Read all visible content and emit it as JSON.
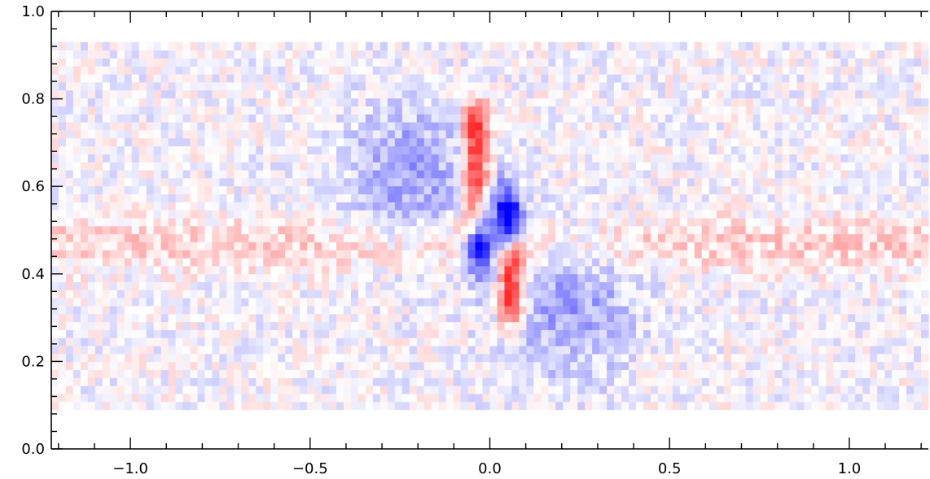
{
  "chart_data": {
    "type": "heatmap",
    "title": "",
    "xlabel": "",
    "ylabel": "",
    "xlim": [
      -1.22,
      1.22
    ],
    "ylim": [
      0.0,
      1.0
    ],
    "x_ticks": [
      -1.0,
      -0.5,
      0.0,
      0.5,
      1.0
    ],
    "x_tick_labels": [
      "−1.0",
      "−0.5",
      "0.0",
      "0.5",
      "1.0"
    ],
    "y_ticks": [
      0.0,
      0.2,
      0.4,
      0.6,
      0.8,
      1.0
    ],
    "y_tick_labels": [
      "0.0",
      "0.2",
      "0.4",
      "0.6",
      "0.8",
      "1.0"
    ],
    "data_extent": {
      "x": [
        -1.22,
        1.22
      ],
      "y": [
        0.09,
        0.93
      ]
    },
    "grid": false,
    "colormap": {
      "negative": "#0000ff",
      "zero": "#ffffff",
      "positive": "#ff0000"
    },
    "value_range": [
      -1,
      1
    ],
    "features": [
      {
        "shape": "vertical-band",
        "x": -0.04,
        "y_range": [
          0.52,
          0.75
        ],
        "sign": "positive",
        "strength": 0.9
      },
      {
        "shape": "vertical-band",
        "x": 0.06,
        "y_range": [
          0.33,
          0.44
        ],
        "sign": "positive",
        "strength": 0.95
      },
      {
        "shape": "core",
        "x": -0.03,
        "y": 0.48,
        "sign": "negative",
        "strength": 1.0
      },
      {
        "shape": "core",
        "x": 0.05,
        "y": 0.52,
        "sign": "negative",
        "strength": 1.0
      },
      {
        "shape": "diffuse-lobe",
        "x": -0.22,
        "y": 0.63,
        "sign": "negative",
        "strength": 0.35
      },
      {
        "shape": "diffuse-lobe",
        "x": 0.22,
        "y": 0.33,
        "sign": "negative",
        "strength": 0.35
      },
      {
        "shape": "horizontal-band",
        "y": 0.47,
        "x_range": [
          -1.22,
          1.22
        ],
        "sign": "positive",
        "strength": 0.2
      }
    ]
  }
}
